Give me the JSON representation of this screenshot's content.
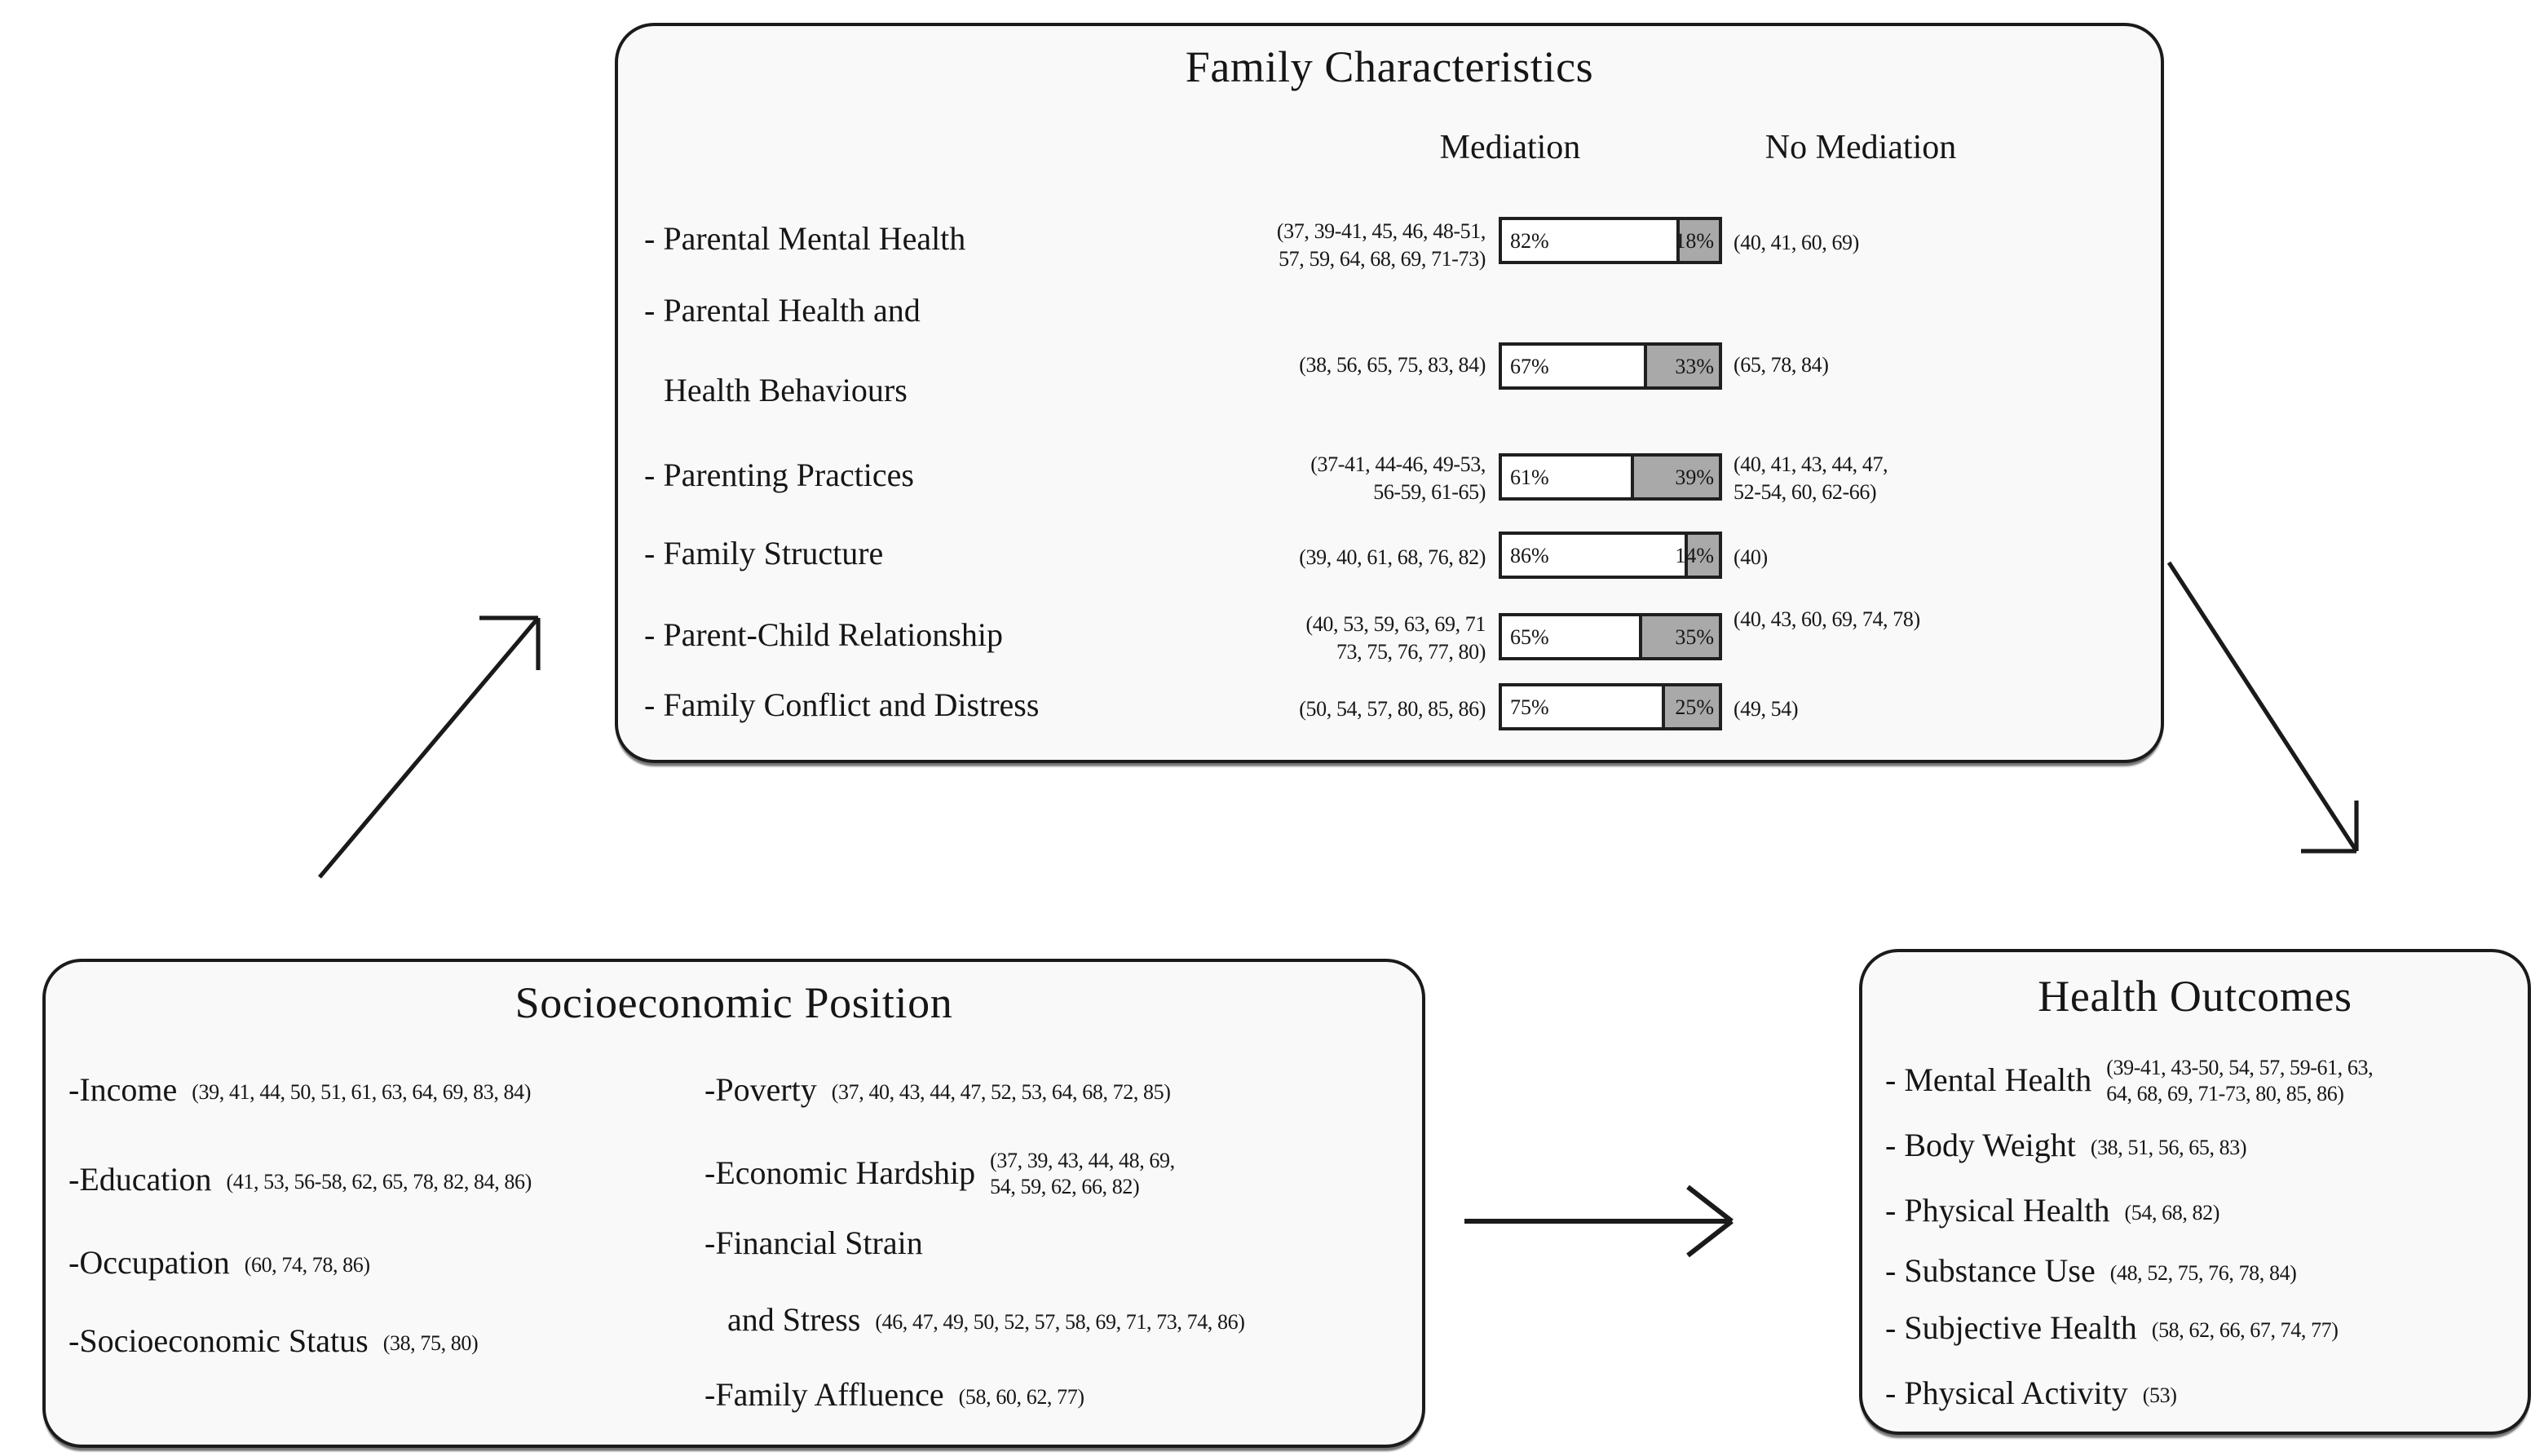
{
  "colors": {
    "box_fill": "#f9f9f9",
    "box_border": "#1b1b1b",
    "bar_fill_mediation": "#ffffff",
    "bar_fill_no_mediation": "#a9a9a9",
    "arrow": "#1a1a1a"
  },
  "family_box": {
    "title": "Family Characteristics",
    "columns": {
      "mediation": "Mediation",
      "no_mediation": "No Mediation"
    },
    "rows": [
      {
        "label": "- Parental Mental Health",
        "label2": "",
        "cite_left1": "(37, 39-41, 45, 46, 48-51,",
        "cite_left2": "57, 59, 64, 68, 69, 71-73)",
        "mediation_pct": 82,
        "mediation_label": "82%",
        "no_mediation_pct": 18,
        "no_mediation_label": "18%",
        "cite_right1": "(40, 41, 60, 69)",
        "cite_right2": ""
      },
      {
        "label": "- Parental Health and",
        "label2": "Health Behaviours",
        "cite_left1": "(38, 56, 65, 75, 83, 84)",
        "cite_left2": "",
        "mediation_pct": 67,
        "mediation_label": "67%",
        "no_mediation_pct": 33,
        "no_mediation_label": "33%",
        "cite_right1": "(65, 78, 84)",
        "cite_right2": ""
      },
      {
        "label": "- Parenting Practices",
        "label2": "",
        "cite_left1": "(37-41, 44-46, 49-53,",
        "cite_left2": "56-59, 61-65)",
        "mediation_pct": 61,
        "mediation_label": "61%",
        "no_mediation_pct": 39,
        "no_mediation_label": "39%",
        "cite_right1": "(40, 41, 43, 44, 47,",
        "cite_right2": "52-54, 60, 62-66)"
      },
      {
        "label": "- Family Structure",
        "label2": "",
        "cite_left1": "(39, 40, 61, 68, 76, 82)",
        "cite_left2": "",
        "mediation_pct": 86,
        "mediation_label": "86%",
        "no_mediation_pct": 14,
        "no_mediation_label": "14%",
        "cite_right1": "(40)",
        "cite_right2": ""
      },
      {
        "label": "- Parent-Child Relationship",
        "label2": "",
        "cite_left1": "(40, 53, 59, 63, 69, 71",
        "cite_left2": "73, 75, 76, 77, 80)",
        "mediation_pct": 65,
        "mediation_label": "65%",
        "no_mediation_pct": 35,
        "no_mediation_label": "35%",
        "cite_right1": "(40, 43, 60, 69, 74, 78)",
        "cite_right2": ""
      },
      {
        "label": "- Family Conflict and Distress",
        "label2": "",
        "cite_left1": "(50, 54, 57, 80, 85, 86)",
        "cite_left2": "",
        "mediation_pct": 75,
        "mediation_label": "75%",
        "no_mediation_pct": 25,
        "no_mediation_label": "25%",
        "cite_right1": "(49, 54)",
        "cite_right2": ""
      }
    ]
  },
  "sep_box": {
    "title": "Socioeconomic Position",
    "left_items": [
      {
        "label": "-Income",
        "cite": "(39, 41, 44, 50, 51, 61, 63, 64, 69, 83, 84)"
      },
      {
        "label": "-Education",
        "cite": "(41, 53, 56-58, 62, 65, 78, 82, 84, 86)"
      },
      {
        "label": "-Occupation",
        "cite": "(60, 74, 78, 86)"
      },
      {
        "label": "-Socioeconomic Status",
        "cite": "(38, 75, 80)"
      }
    ],
    "right_items": [
      {
        "label": "-Poverty",
        "cite": "(37, 40, 43, 44, 47, 52, 53, 64, 68, 72, 85)"
      },
      {
        "label": "-Economic Hardship",
        "cite1": "(37, 39, 43, 44, 48, 69,",
        "cite2": "54, 59, 62, 66, 82)"
      },
      {
        "label": "-Financial Strain"
      },
      {
        "label": "and Stress",
        "cite": "(46, 47, 49, 50, 52, 57, 58, 69, 71, 73, 74, 86)"
      },
      {
        "label": "-Family Affluence",
        "cite": "(58, 60, 62, 77)"
      }
    ]
  },
  "health_box": {
    "title": "Health Outcomes",
    "items": [
      {
        "label": "- Mental Health",
        "cite1": "(39-41, 43-50, 54, 57, 59-61, 63,",
        "cite2": "64, 68, 69, 71-73, 80, 85, 86)"
      },
      {
        "label": "- Body Weight",
        "cite": "(38, 51, 56, 65, 83)"
      },
      {
        "label": "- Physical Health",
        "cite": "(54, 68, 82)"
      },
      {
        "label": "- Substance Use",
        "cite": "(48, 52, 75, 76, 78, 84)"
      },
      {
        "label": "- Subjective Health",
        "cite": "(58, 62, 66, 67, 74, 77)"
      },
      {
        "label": "- Physical Activity",
        "cite": "(53)"
      }
    ]
  }
}
